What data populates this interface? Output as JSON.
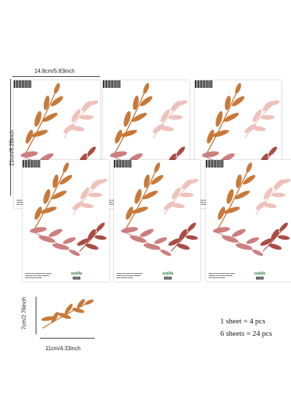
{
  "dimensions": {
    "sheet_width": "14.8cm/5.83inch",
    "sheet_height": "21cm/8.28inch",
    "leaf_height": "7cm/2.76inch",
    "leaf_width": "11cm/4.33inch"
  },
  "captions": {
    "per_sheet": "1 sheet = 4 pcs",
    "total": "6 sheets = 24 pcs"
  },
  "sheet": {
    "brand": "onlife",
    "code": "PA256"
  },
  "colors": {
    "leaf_orange": "#c8793a",
    "leaf_pink": "#eec2bb",
    "leaf_rose": "#cd7f80",
    "leaf_red": "#a94d45"
  }
}
